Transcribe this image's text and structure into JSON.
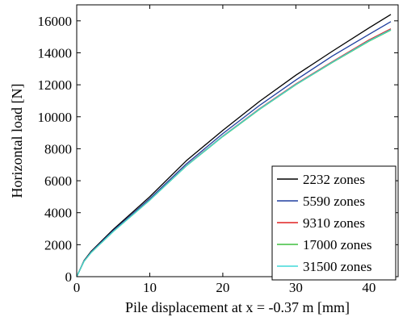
{
  "chart_data": {
    "type": "line",
    "title": "",
    "xlabel": "Pile displacement at x = -0.37 m [mm]",
    "ylabel": "Horizontal load [N]",
    "xlim": [
      0,
      44
    ],
    "ylim": [
      0,
      17000
    ],
    "xticks": [
      0,
      10,
      20,
      30,
      40
    ],
    "yticks": [
      0,
      2000,
      4000,
      6000,
      8000,
      10000,
      12000,
      14000,
      16000
    ],
    "grid": false,
    "legend_position": "bottom-right",
    "series": [
      {
        "name": "2232 zones",
        "color": "#000000",
        "x": [
          0,
          1,
          2,
          5,
          10,
          15,
          20,
          25,
          30,
          35,
          40,
          43
        ],
        "y": [
          0,
          1000,
          1600,
          2950,
          5000,
          7250,
          9150,
          10950,
          12600,
          14100,
          15550,
          16400
        ]
      },
      {
        "name": "5590 zones",
        "color": "#1f3f9f",
        "x": [
          0,
          1,
          2,
          5,
          10,
          15,
          20,
          25,
          30,
          35,
          40,
          43
        ],
        "y": [
          0,
          980,
          1560,
          2880,
          4880,
          7050,
          8950,
          10700,
          12300,
          13800,
          15150,
          15950
        ]
      },
      {
        "name": "9310 zones",
        "color": "#e02020",
        "x": [
          0,
          1,
          2,
          5,
          10,
          15,
          20,
          25,
          30,
          35,
          40,
          43
        ],
        "y": [
          0,
          960,
          1530,
          2830,
          4800,
          6950,
          8800,
          10500,
          12050,
          13450,
          14800,
          15500
        ]
      },
      {
        "name": "17000 zones",
        "color": "#3fbf3f",
        "x": [
          0,
          1,
          2,
          5,
          10,
          15,
          20,
          25,
          30,
          35,
          40,
          43
        ],
        "y": [
          0,
          955,
          1520,
          2820,
          4780,
          6920,
          8760,
          10450,
          12000,
          13400,
          14720,
          15420
        ]
      },
      {
        "name": "31500 zones",
        "color": "#40d8d8",
        "x": [
          0,
          1,
          2,
          5,
          10,
          15,
          20,
          25,
          30,
          35,
          40,
          43
        ],
        "y": [
          0,
          958,
          1525,
          2825,
          4790,
          6935,
          8780,
          10470,
          12020,
          13420,
          14750,
          15450
        ]
      }
    ]
  }
}
